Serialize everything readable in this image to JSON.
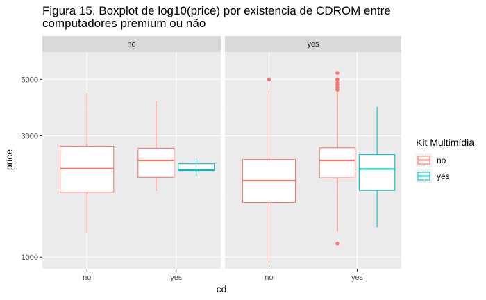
{
  "chart_data": {
    "type": "boxplot",
    "title_lines": [
      "Figura 15. Boxplot de log10(price) por existencia de CDROM entre",
      "computadores premium ou não"
    ],
    "xlabel": "cd",
    "ylabel": "price",
    "y_scale": "log10",
    "ylim": [
      900,
      6400
    ],
    "y_ticks": [
      {
        "value": 1000,
        "label": "1000"
      },
      {
        "value": 3000,
        "label": "3000"
      },
      {
        "value": 5000,
        "label": "5000"
      }
    ],
    "facet_variable": "premium",
    "grid": true,
    "legend": {
      "title": "Kit Multimídia",
      "placement": "right",
      "entries": [
        {
          "label": "no",
          "color": "#F8766D"
        },
        {
          "label": "yes",
          "color": "#00BFC4"
        }
      ]
    },
    "panel_background": "#EBEBEB",
    "strip_background": "#D9D9D9",
    "panels": [
      {
        "strip": "no",
        "categories": [
          "no",
          "yes"
        ],
        "boxes": [
          {
            "category": "no",
            "group": "no",
            "whisker_low": 1240,
            "q1": 1800,
            "median": 2230,
            "q3": 2730,
            "whisker_high": 4400,
            "outliers": []
          },
          {
            "category": "yes",
            "group": "no",
            "whisker_low": 1820,
            "q1": 2060,
            "median": 2400,
            "q3": 2680,
            "whisker_high": 4100,
            "outliers": []
          },
          {
            "category": "yes",
            "group": "yes",
            "whisker_low": 2080,
            "q1": 2190,
            "median": 2200,
            "q3": 2330,
            "whisker_high": 2440,
            "outliers": []
          }
        ]
      },
      {
        "strip": "yes",
        "categories": [
          "no",
          "yes"
        ],
        "boxes": [
          {
            "category": "no",
            "group": "no",
            "whisker_low": 950,
            "q1": 1640,
            "median": 2000,
            "q3": 2420,
            "whisker_high": 4500,
            "outliers": [
              5000
            ]
          },
          {
            "category": "yes",
            "group": "no",
            "whisker_low": 1260,
            "q1": 2050,
            "median": 2400,
            "q3": 2690,
            "whisker_high": 4500,
            "outliers": [
              1130,
              4550,
              4650,
              4750,
              4850,
              5000,
              5300
            ]
          },
          {
            "category": "yes",
            "group": "yes",
            "whisker_low": 1310,
            "q1": 1830,
            "median": 2220,
            "q3": 2530,
            "whisker_high": 3900,
            "outliers": []
          }
        ]
      }
    ]
  }
}
